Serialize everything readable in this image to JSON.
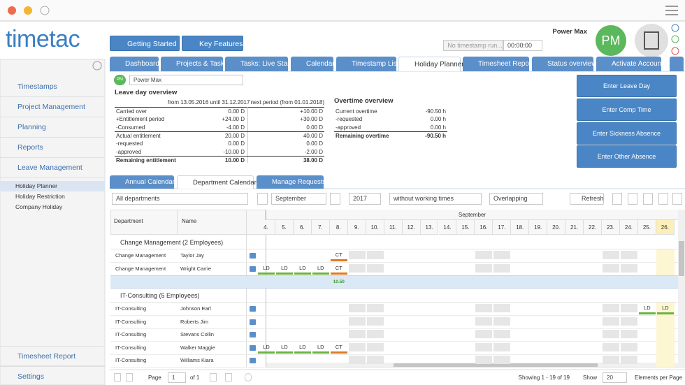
{
  "logo": "timetac",
  "header": {
    "getting_started": "Getting Started",
    "key_features": "Key Features",
    "timestamp_status": "No timestamp run...",
    "timer": "00:00:00",
    "user_name": "Power Max",
    "avatar": "PM"
  },
  "tabs": [
    "Dashboard",
    "Projects & Tasks",
    "Tasks: Live Start",
    "Calendar",
    "Timestamp List",
    "Holiday Planner",
    "Timesheet Report",
    "Status overview",
    "Activate Account"
  ],
  "sidebar": {
    "items": [
      "Timestamps",
      "Project Management",
      "Planning",
      "Reports",
      "Leave Management"
    ],
    "sub_items": [
      "Holiday Planner",
      "Holiday Restriction",
      "Company Holiday"
    ],
    "bottom_items": [
      "Timesheet Report",
      "Settings"
    ]
  },
  "user_select": {
    "avatar": "PM",
    "name": "Power Max"
  },
  "leave_overview": {
    "title": "Leave day overview",
    "columns": [
      "from 13.05.2016 until 31.12.2017",
      "next period (from 01.01.2018)"
    ],
    "rows": [
      [
        "Carried over",
        "0.00 D",
        "+10.00 D"
      ],
      [
        "+Entitlement period",
        "+24.00 D",
        "+30.00 D"
      ],
      [
        "-Consumed",
        "-4.00 D",
        "0.00 D"
      ],
      [
        "Actual entitlement",
        "20.00 D",
        "40.00 D"
      ],
      [
        "-requested",
        "0.00 D",
        "0.00 D"
      ],
      [
        "-approved",
        "-10.00 D",
        "-2.00 D"
      ],
      [
        "Remaining entitlement",
        "10.00 D",
        "38.00 D"
      ]
    ]
  },
  "overtime_overview": {
    "title": "Overtime overview",
    "rows": [
      [
        "Current overtime",
        "-90.50 h"
      ],
      [
        "-requested",
        "0.00 h"
      ],
      [
        "-approved",
        "0.00 h"
      ],
      [
        "Remaining overtime",
        "-90.50 h"
      ]
    ]
  },
  "actions": [
    "Enter Leave Day",
    "Enter Comp Time",
    "Enter Sickness Absence",
    "Enter Other Absence"
  ],
  "subtabs": [
    "Annual Calendar",
    "Department Calendar",
    "Manage Requests"
  ],
  "toolbar": {
    "department": "All departments",
    "month": "September",
    "year": "2017",
    "mode": "without working times",
    "display": "Overlapping",
    "refresh": "Refresh"
  },
  "calendar": {
    "columns": [
      "Department",
      "Name"
    ],
    "month": "September",
    "days": [
      "4.",
      "5.",
      "6.",
      "7.",
      "8.",
      "9.",
      "10.",
      "11.",
      "12.",
      "13.",
      "14.",
      "15.",
      "16.",
      "17.",
      "18.",
      "19.",
      "20.",
      "21.",
      "22.",
      "23.",
      "24.",
      "25.",
      "26."
    ],
    "groups": [
      {
        "title": "Change Management (2 Employees)",
        "rows": [
          {
            "department": "Change Management",
            "name": "Taylor Jay",
            "cells": [
              null,
              null,
              null,
              null,
              "CT",
              null,
              null,
              null,
              null,
              null,
              null,
              null,
              null,
              null,
              null,
              null,
              null,
              null,
              null,
              null,
              null,
              null,
              null
            ]
          },
          {
            "department": "Change Management",
            "name": "Wright Carrie",
            "cells": [
              "LD",
              "LD",
              "LD",
              "LD",
              "CT",
              null,
              null,
              null,
              null,
              null,
              null,
              null,
              null,
              null,
              null,
              null,
              null,
              null,
              null,
              null,
              null,
              null,
              null
            ]
          }
        ],
        "summary": [
          null,
          null,
          null,
          null,
          "10.50",
          null,
          null,
          null,
          null,
          null,
          null,
          null,
          null,
          null,
          null,
          null,
          null,
          null,
          null,
          null,
          null,
          null,
          null
        ]
      },
      {
        "title": "IT-Consulting (5 Employees)",
        "rows": [
          {
            "department": "IT-Consulting",
            "name": "Johnson Earl",
            "cells": [
              null,
              null,
              null,
              null,
              null,
              null,
              null,
              null,
              null,
              null,
              null,
              null,
              null,
              null,
              null,
              null,
              null,
              null,
              null,
              null,
              null,
              "LD",
              "LD"
            ]
          },
          {
            "department": "IT-Consulting",
            "name": "Roberts Jim",
            "cells": [
              null,
              null,
              null,
              null,
              null,
              null,
              null,
              null,
              null,
              null,
              null,
              null,
              null,
              null,
              null,
              null,
              null,
              null,
              null,
              null,
              null,
              null,
              null
            ]
          },
          {
            "department": "IT-Consulting",
            "name": "Stevans Collin",
            "cells": [
              null,
              null,
              null,
              null,
              null,
              null,
              null,
              null,
              null,
              null,
              null,
              null,
              null,
              null,
              null,
              null,
              null,
              null,
              null,
              null,
              null,
              null,
              null
            ]
          },
          {
            "department": "IT-Consulting",
            "name": "Walker Maggie",
            "cells": [
              "LD",
              "LD",
              "LD",
              "LD",
              "CT",
              null,
              null,
              null,
              null,
              null,
              null,
              null,
              null,
              null,
              null,
              null,
              null,
              null,
              null,
              null,
              null,
              null,
              null
            ]
          },
          {
            "department": "IT-Consulting",
            "name": "Williams Kiara",
            "cells": [
              null,
              null,
              null,
              null,
              null,
              null,
              null,
              null,
              null,
              null,
              null,
              null,
              null,
              null,
              null,
              null,
              null,
              null,
              null,
              null,
              null,
              null,
              null
            ]
          }
        ]
      }
    ]
  },
  "pager": {
    "page_label": "Page",
    "page": "1",
    "of": "of 1",
    "showing": "Showing 1 - 19 of 19",
    "show": "Show",
    "page_size": "20",
    "per_page": "Elements per Page"
  }
}
